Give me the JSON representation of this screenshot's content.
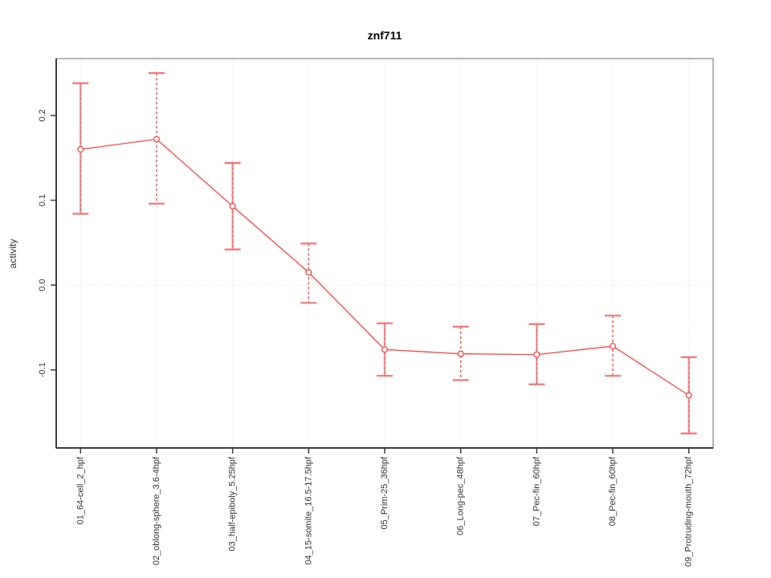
{
  "page": {
    "background": "#ffffff"
  },
  "chart_data": {
    "type": "line",
    "title": "znf711",
    "xlabel": "",
    "ylabel": "activity",
    "legend_position": "none",
    "grid": {
      "vertical_dotted_at_each_category": true,
      "horizontal_dotted_at_zero": true
    },
    "categories": [
      "01_64-cell_2_hpf",
      "02_oblong-sphere_3.6-4hpf",
      "03_half-epiboly_5.25hpf",
      "04_15-somite_16.5-17.5hpf",
      "05_Prim-25_36hpf",
      "06_Long-pec_48hpf",
      "07_Pec-fin_60hpf",
      "08_Pec-fin_60hpf",
      "09_Protruding-mouth_72hpf"
    ],
    "series": [
      {
        "name": "activity",
        "marker": "open-circle",
        "values": [
          0.16,
          0.172,
          0.093,
          0.015,
          -0.076,
          -0.081,
          -0.082,
          -0.072,
          -0.13
        ],
        "error_upper": [
          0.238,
          0.25,
          0.144,
          0.049,
          -0.045,
          -0.049,
          -0.046,
          -0.036,
          -0.085
        ],
        "error_lower": [
          0.084,
          0.096,
          0.042,
          -0.021,
          -0.107,
          -0.112,
          -0.117,
          -0.107,
          -0.175
        ]
      }
    ],
    "errorbar_styles": [
      "solid",
      "dashed",
      "solid",
      "dashed",
      "solid",
      "dashed",
      "solid",
      "dashed",
      "solid"
    ],
    "ylim": [
      -0.192,
      0.267
    ],
    "yticks": [
      -0.1,
      0.0,
      0.1,
      0.2
    ],
    "ytick_labels": [
      "-0.1",
      "0.0",
      "0.1",
      "0.2"
    ],
    "colors": {
      "line": "#ff4242",
      "point": "#ff4242",
      "errorbar_solid": "#f87d7d",
      "errorbar_dashed": "#ff4444",
      "errorbar_cap": "#f87272",
      "grid": "#d8d8d8",
      "box": "#999999",
      "axis": "#3c3c3c",
      "text": "#333333"
    }
  }
}
